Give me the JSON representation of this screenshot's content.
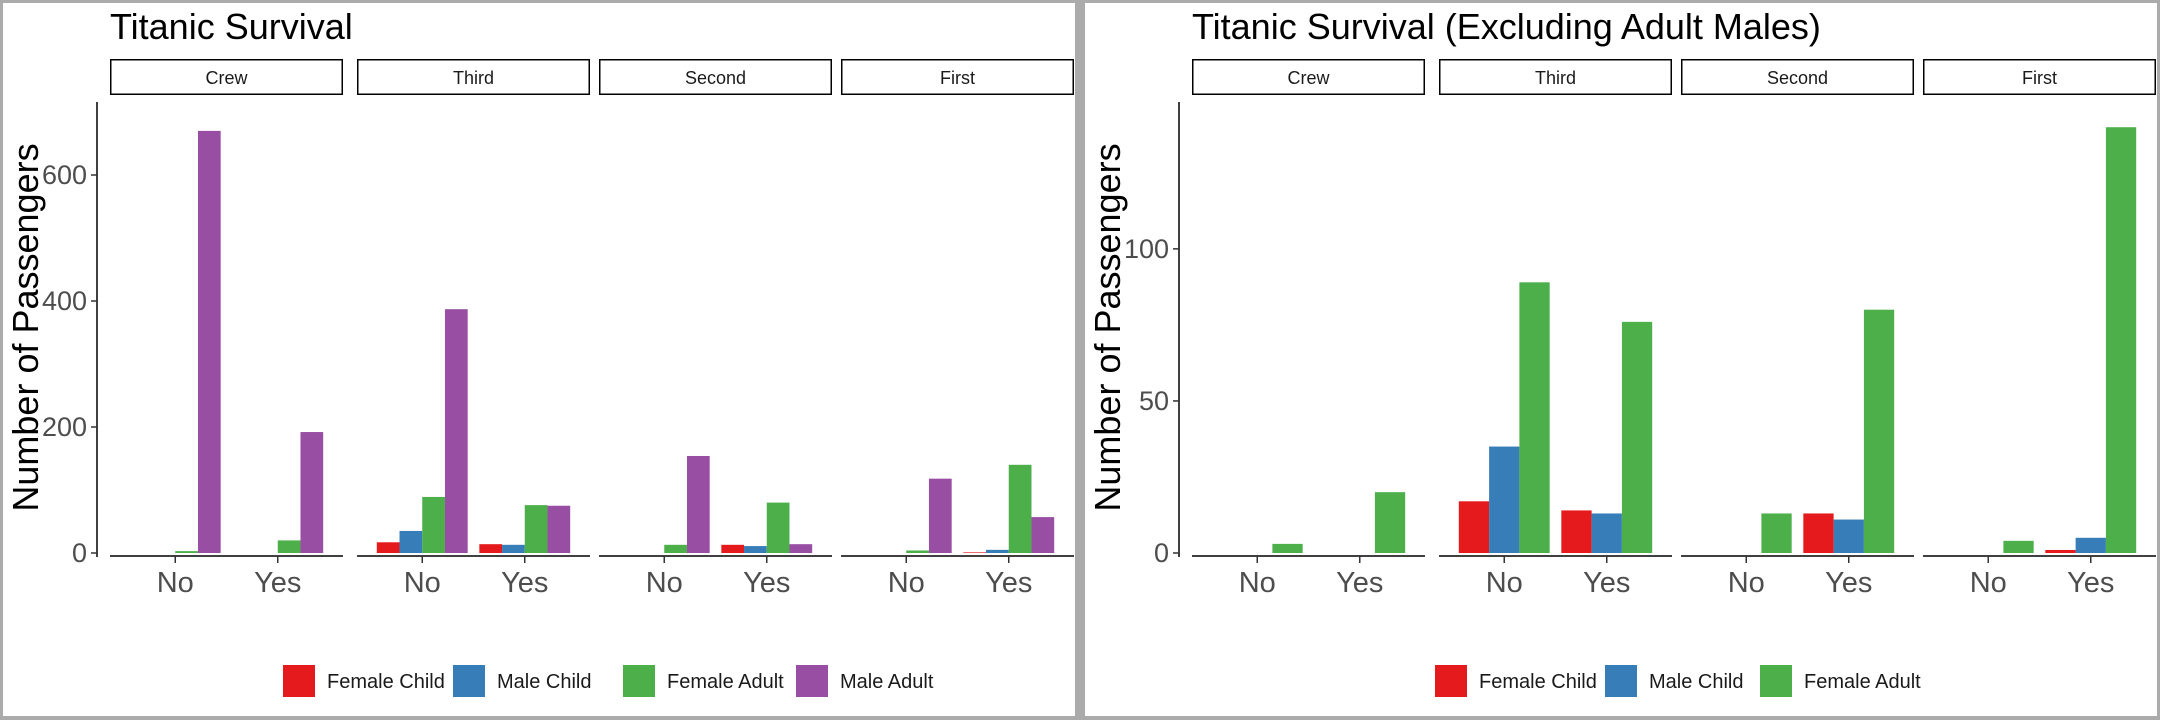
{
  "chart_data": [
    {
      "type": "bar",
      "title": "Titanic Survival",
      "xlabel": "",
      "ylabel": "Number of Passengers",
      "facets": [
        "Crew",
        "Third",
        "Second",
        "First"
      ],
      "categories": [
        "No",
        "Yes"
      ],
      "ylim": [
        0,
        700
      ],
      "yticks": [
        0,
        200,
        400,
        600
      ],
      "grid": false,
      "legend_position": "bottom",
      "series": [
        {
          "name": "Female Child",
          "color": "#e41a1c",
          "values": {
            "Crew": [
              0,
              0
            ],
            "Third": [
              17,
              14
            ],
            "Second": [
              0,
              13
            ],
            "First": [
              0,
              1
            ]
          }
        },
        {
          "name": "Male Child",
          "color": "#377eb8",
          "values": {
            "Crew": [
              0,
              0
            ],
            "Third": [
              35,
              13
            ],
            "Second": [
              0,
              11
            ],
            "First": [
              0,
              5
            ]
          }
        },
        {
          "name": "Female Adult",
          "color": "#4daf4a",
          "values": {
            "Crew": [
              3,
              20
            ],
            "Third": [
              89,
              76
            ],
            "Second": [
              13,
              80
            ],
            "First": [
              4,
              140
            ]
          }
        },
        {
          "name": "Male Adult",
          "color": "#984ea3",
          "values": {
            "Crew": [
              670,
              192
            ],
            "Third": [
              387,
              75
            ],
            "Second": [
              154,
              14
            ],
            "First": [
              118,
              57
            ]
          }
        }
      ]
    },
    {
      "type": "bar",
      "title": "Titanic Survival (Excluding Adult Males)",
      "xlabel": "",
      "ylabel": "Number of Passengers",
      "facets": [
        "Crew",
        "Third",
        "Second",
        "First"
      ],
      "categories": [
        "No",
        "Yes"
      ],
      "ylim": [
        0,
        145
      ],
      "yticks": [
        0,
        50,
        100
      ],
      "grid": false,
      "legend_position": "bottom",
      "series": [
        {
          "name": "Female Child",
          "color": "#e41a1c",
          "values": {
            "Crew": [
              0,
              0
            ],
            "Third": [
              17,
              14
            ],
            "Second": [
              0,
              13
            ],
            "First": [
              0,
              1
            ]
          }
        },
        {
          "name": "Male Child",
          "color": "#377eb8",
          "values": {
            "Crew": [
              0,
              0
            ],
            "Third": [
              35,
              13
            ],
            "Second": [
              0,
              11
            ],
            "First": [
              0,
              5
            ]
          }
        },
        {
          "name": "Female Adult",
          "color": "#4daf4a",
          "values": {
            "Crew": [
              3,
              20
            ],
            "Third": [
              89,
              76
            ],
            "Second": [
              13,
              80
            ],
            "First": [
              4,
              140
            ]
          }
        }
      ]
    }
  ]
}
